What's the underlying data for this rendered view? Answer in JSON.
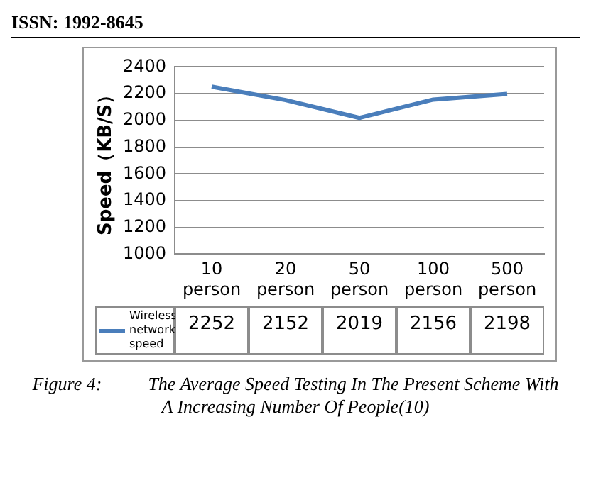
{
  "chart_data": {
    "type": "line",
    "ylabel": "Speed（KB/S）",
    "categories": [
      "10 person",
      "20 person",
      "50 person",
      "100 person",
      "500 person"
    ],
    "series": [
      {
        "name": "Wireless network speed",
        "color": "#4a7ebb",
        "values": [
          2252,
          2152,
          2019,
          2156,
          2198
        ]
      }
    ],
    "ylim": [
      1000,
      2400
    ],
    "yticks": [
      1000,
      1200,
      1400,
      1600,
      1800,
      2000,
      2200,
      2400
    ],
    "grid": "y",
    "legend": "bottom",
    "marker": "none",
    "line_style": "solid",
    "data_labels": true,
    "annotations": [
      "ISSN: 1992-8645",
      "Figure 4:          The Average Speed Testing In The Present Scheme With A Increasing Number Of People(10)"
    ]
  }
}
